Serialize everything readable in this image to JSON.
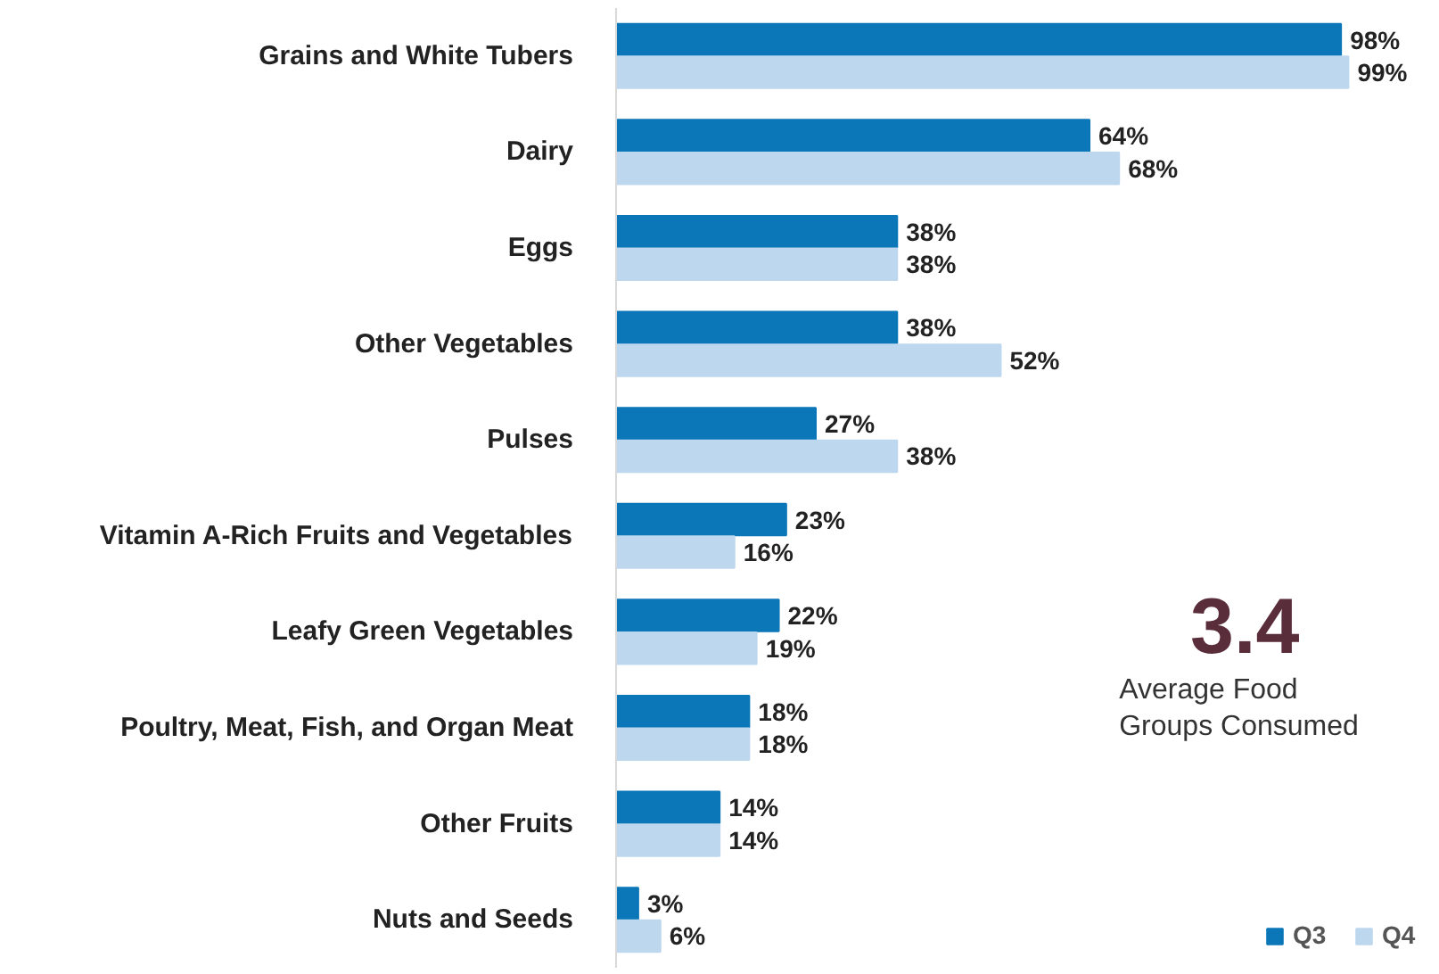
{
  "chart_data": {
    "type": "bar",
    "orientation": "horizontal",
    "categories": [
      "Grains and White Tubers",
      "Dairy",
      "Eggs",
      "Other Vegetables",
      "Pulses",
      "Vitamin A-Rich Fruits and Vegetables",
      "Leafy Green Vegetables",
      "Poultry, Meat, Fish, and Organ Meat",
      "Other Fruits",
      "Nuts and Seeds"
    ],
    "series": [
      {
        "name": "Q3",
        "color": "#0b77b8",
        "values": [
          98,
          64,
          38,
          38,
          27,
          23,
          22,
          18,
          14,
          3
        ],
        "value_labels": [
          "98%",
          "64%",
          "38%",
          "38%",
          "27%",
          "23%",
          "22%",
          "18%",
          "14%",
          "3%"
        ]
      },
      {
        "name": "Q4",
        "color": "#bdd7ee",
        "values": [
          99,
          68,
          38,
          52,
          38,
          16,
          19,
          18,
          14,
          6
        ],
        "value_labels": [
          "99%",
          "68%",
          "38%",
          "52%",
          "38%",
          "16%",
          "19%",
          "18%",
          "14%",
          "6%"
        ]
      }
    ],
    "grid": false,
    "legend": "bottom right",
    "tick_labels": "y",
    "annotations": [
      "3.4",
      "Average Food Groups Consumed"
    ]
  }
}
